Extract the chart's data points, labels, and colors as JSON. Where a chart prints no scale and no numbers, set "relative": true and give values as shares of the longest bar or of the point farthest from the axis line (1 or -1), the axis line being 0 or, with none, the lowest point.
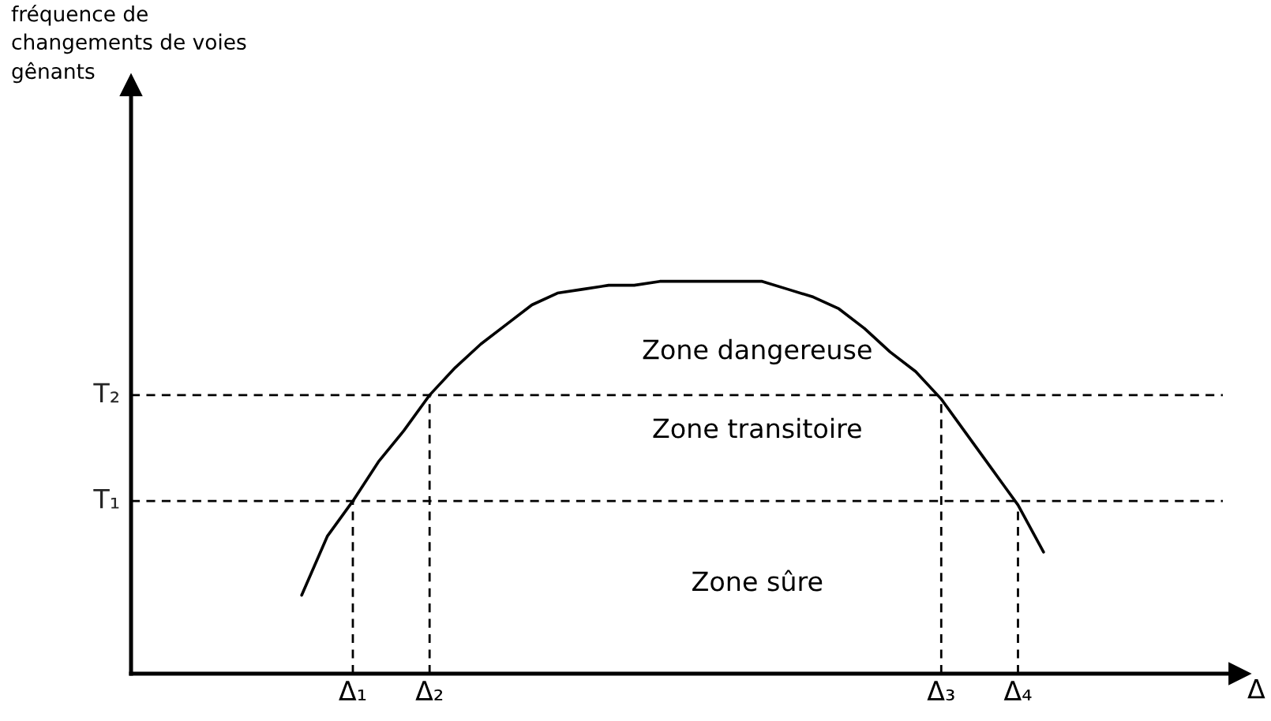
{
  "chart_data": {
    "type": "line",
    "relative": true,
    "categories": [
      null,
      null,
      "Δ₁",
      null,
      null,
      "Δ₂",
      null,
      null,
      null,
      null,
      null,
      null,
      null,
      null,
      null,
      null,
      null,
      null,
      null,
      null,
      null,
      null,
      null,
      null,
      null,
      "Δ₃",
      null,
      null,
      "Δ₄",
      null
    ],
    "series": [
      {
        "color": "#000000",
        "values": [
          0.2,
          0.35,
          0.44,
          0.54,
          0.62,
          0.71,
          0.78,
          0.84,
          0.89,
          0.94,
          0.97,
          0.98,
          0.99,
          0.99,
          1.0,
          1.0,
          1.0,
          1.0,
          1.0,
          0.98,
          0.96,
          0.93,
          0.88,
          0.82,
          0.77,
          0.7,
          0.61,
          0.52,
          0.43,
          0.31
        ]
      }
    ],
    "tick_labels": "x",
    "line_style": "solid",
    "marker": "none",
    "ref_lines": [
      {
        "axis": "y",
        "value": 0.71,
        "label": "T₂",
        "line_style": "dashed",
        "color": "#000000"
      },
      {
        "axis": "y",
        "value": 0.44,
        "label": "T₁",
        "line_style": "dashed",
        "color": "#000000"
      },
      {
        "axis": "x",
        "value": "Δ₁",
        "line_style": "dashed",
        "color": "#000000"
      },
      {
        "axis": "x",
        "value": "Δ₂",
        "line_style": "dashed",
        "color": "#000000"
      },
      {
        "axis": "x",
        "value": "Δ₃",
        "line_style": "dashed",
        "color": "#000000"
      },
      {
        "axis": "x",
        "value": "Δ₄",
        "line_style": "dashed",
        "color": "#000000"
      }
    ],
    "annotations": [
      "fréquence de\nchangements de voies\ngênants",
      "Zone dangereuse",
      "Zone transitoire",
      "Zone sûre",
      "Δ"
    ]
  }
}
